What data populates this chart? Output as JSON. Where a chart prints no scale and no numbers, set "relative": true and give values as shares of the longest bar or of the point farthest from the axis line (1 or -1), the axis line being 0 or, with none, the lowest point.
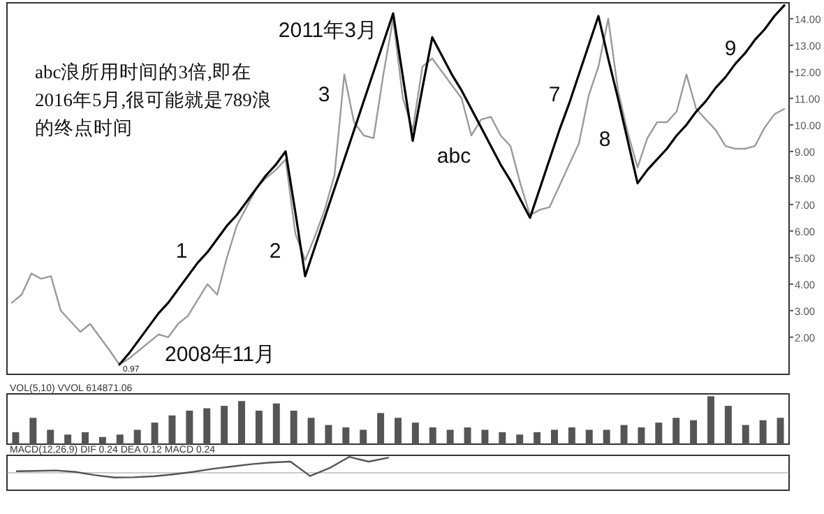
{
  "chart_data": [
    {
      "type": "line",
      "ylim": [
        0.6,
        14.6
      ],
      "tick_labels": "y",
      "categories": [
        null,
        null,
        null,
        null,
        null,
        null,
        null,
        null,
        null,
        null,
        null,
        null,
        null,
        null,
        null,
        null,
        null,
        null,
        null,
        null,
        null,
        null,
        null,
        null,
        null,
        null,
        null,
        null,
        null,
        null,
        null,
        null,
        null,
        null,
        null,
        null,
        null,
        null,
        null,
        null,
        null,
        null,
        null,
        null,
        null,
        null,
        null,
        null,
        null,
        null,
        null,
        null,
        null,
        null,
        null,
        null,
        null,
        null,
        null,
        null,
        null,
        null,
        null,
        null,
        null,
        null,
        null,
        null,
        null,
        null,
        null,
        null,
        null,
        null,
        null,
        null,
        null,
        null,
        null,
        null
      ],
      "yticks": [
        {
          "value": 2,
          "label": "2.00"
        },
        {
          "value": 3,
          "label": "3.00"
        },
        {
          "value": 4,
          "label": "4.00"
        },
        {
          "value": 5,
          "label": "5.00"
        },
        {
          "value": 6,
          "label": "6.00"
        },
        {
          "value": 7,
          "label": "7.00"
        },
        {
          "value": 8,
          "label": "8.00"
        },
        {
          "value": 9,
          "label": "9.00"
        },
        {
          "value": 10,
          "label": "10.00"
        },
        {
          "value": 11,
          "label": "11.00"
        },
        {
          "value": 12,
          "label": "12.00"
        },
        {
          "value": 13,
          "label": "13.00"
        },
        {
          "value": 14,
          "label": "14.00"
        }
      ],
      "series": [
        {
          "color": "#9a9a9a",
          "values": [
            3.3,
            3.6,
            4.4,
            4.2,
            4.3,
            3.0,
            2.6,
            2.2,
            2.5,
            2.0,
            1.5,
            0.97,
            1.2,
            1.5,
            1.8,
            2.1,
            2.0,
            2.5,
            2.8,
            3.4,
            4.0,
            3.6,
            5.0,
            6.2,
            6.9,
            7.6,
            8.0,
            8.3,
            8.7,
            5.9,
            4.9,
            5.8,
            6.8,
            8.1,
            11.9,
            10.1,
            9.6,
            9.5,
            11.9,
            14.0,
            11.0,
            9.8,
            12.2,
            12.5,
            12.0,
            11.5,
            11.0,
            9.6,
            10.2,
            10.3,
            9.6,
            9.2,
            7.8,
            6.6,
            6.8,
            6.9,
            7.7,
            8.5,
            9.3,
            11.1,
            12.2,
            14.0,
            11.3,
            9.7,
            8.4,
            9.5,
            10.1,
            10.1,
            10.5,
            11.9,
            10.6,
            10.2,
            9.8,
            9.2,
            9.1,
            9.1,
            9.2,
            9.9,
            10.4,
            10.6
          ]
        },
        {
          "color": "#000000",
          "values": [
            null,
            null,
            null,
            null,
            null,
            null,
            null,
            null,
            null,
            null,
            null,
            0.97,
            1.4,
            1.9,
            2.4,
            2.9,
            3.3,
            3.8,
            4.3,
            4.8,
            5.2,
            5.7,
            6.2,
            6.6,
            7.1,
            7.6,
            8.1,
            8.5,
            9.0,
            6.7,
            4.3,
            5.4,
            6.5,
            7.6,
            8.7,
            9.8,
            10.9,
            12.0,
            13.1,
            14.2,
            11.8,
            9.4,
            11.4,
            13.3,
            12.6,
            11.9,
            11.3,
            10.6,
            9.9,
            9.2,
            8.5,
            7.9,
            7.2,
            6.5,
            7.6,
            8.7,
            9.8,
            10.8,
            11.9,
            13.0,
            14.1,
            12.5,
            11.0,
            9.4,
            7.8,
            8.3,
            8.7,
            9.1,
            9.6,
            10.0,
            10.5,
            10.9,
            11.4,
            11.8,
            12.3,
            12.7,
            13.2,
            13.6,
            14.1,
            14.5
          ]
        }
      ],
      "annotations": [
        "abc浪所用时间的3倍,即在2016年5月,很可能就是789浪的终点时间",
        "2011年3月",
        "2008年11月",
        "0.97",
        "1",
        "2",
        "3",
        "abc",
        "7",
        "8",
        "9"
      ]
    },
    {
      "type": "bar",
      "title": "VOL(5,10) VVOL 614871.06",
      "relative": true,
      "color": "#555555",
      "categories": [
        null,
        null,
        null,
        null,
        null,
        null,
        null,
        null,
        null,
        null,
        null,
        null,
        null,
        null,
        null,
        null,
        null,
        null,
        null,
        null,
        null,
        null,
        null,
        null,
        null,
        null,
        null,
        null,
        null,
        null,
        null,
        null,
        null,
        null,
        null,
        null,
        null,
        null,
        null,
        null,
        null,
        null,
        null,
        null,
        null
      ],
      "values": [
        0.25,
        0.55,
        0.3,
        0.2,
        0.25,
        0.15,
        0.2,
        0.3,
        0.45,
        0.6,
        0.7,
        0.75,
        0.8,
        0.9,
        0.7,
        0.85,
        0.7,
        0.55,
        0.4,
        0.35,
        0.3,
        0.65,
        0.55,
        0.45,
        0.35,
        0.3,
        0.35,
        0.3,
        0.25,
        0.2,
        0.25,
        0.3,
        0.35,
        0.3,
        0.3,
        0.4,
        0.35,
        0.45,
        0.55,
        0.5,
        1.0,
        0.8,
        0.4,
        0.5,
        0.55
      ]
    },
    {
      "type": "line",
      "title": "MACD(12,26,9) DIF 0.24 DEA 0.12 MACD 0.24",
      "relative": true,
      "color": "#555555",
      "categories": [
        null,
        null,
        null,
        null,
        null,
        null,
        null,
        null,
        null,
        null,
        null,
        null,
        null,
        null,
        null,
        null,
        null,
        null,
        null,
        null,
        null,
        null,
        null,
        null,
        null,
        null,
        null,
        null,
        null,
        null,
        null,
        null,
        null,
        null,
        null,
        null,
        null,
        null,
        null,
        null
      ],
      "values": [
        0.1,
        0.12,
        0.15,
        0.05,
        -0.15,
        -0.3,
        -0.28,
        -0.22,
        -0.1,
        0.05,
        0.25,
        0.4,
        0.55,
        0.65,
        0.7,
        -0.2,
        0.3,
        1.0,
        0.7,
        0.95,
        null,
        null,
        null,
        null,
        null,
        null,
        null,
        null,
        null,
        null,
        null,
        null,
        null,
        null,
        null,
        null,
        null,
        null,
        null,
        null
      ]
    }
  ]
}
